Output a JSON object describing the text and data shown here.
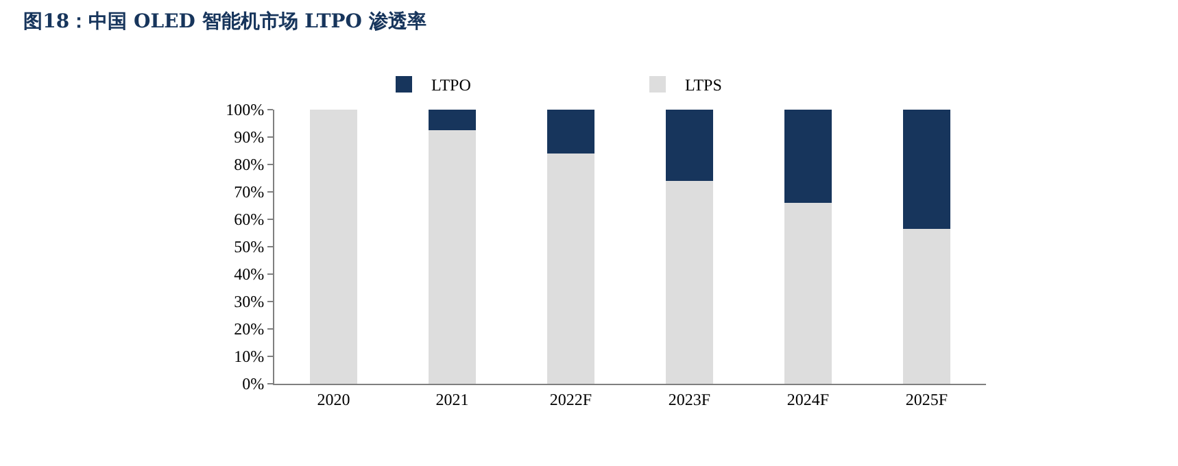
{
  "chart_data": {
    "type": "bar",
    "title": "图18：中国 OLED 智能机市场 LTPO 渗透率",
    "categories": [
      "2020",
      "2021",
      "2022F",
      "2023F",
      "2024F",
      "2025F"
    ],
    "stacked": true,
    "series": [
      {
        "name": "LTPS",
        "color": "#dddddd",
        "values": [
          100,
          92.5,
          84,
          74,
          66,
          56.5
        ]
      },
      {
        "name": "LTPO",
        "color": "#17355c",
        "values": [
          0,
          7.5,
          16,
          26,
          34,
          43.5
        ]
      }
    ],
    "ylim": [
      0,
      100
    ],
    "yticks": [
      {
        "value": 0,
        "label": "0%"
      },
      {
        "value": 10,
        "label": "10%"
      },
      {
        "value": 20,
        "label": "20%"
      },
      {
        "value": 30,
        "label": "30%"
      },
      {
        "value": 40,
        "label": "40%"
      },
      {
        "value": 50,
        "label": "50%"
      },
      {
        "value": 60,
        "label": "60%"
      },
      {
        "value": 70,
        "label": "70%"
      },
      {
        "value": 80,
        "label": "80%"
      },
      {
        "value": 90,
        "label": "90%"
      },
      {
        "value": 100,
        "label": "100%"
      }
    ],
    "grid": false,
    "legend": "top"
  }
}
